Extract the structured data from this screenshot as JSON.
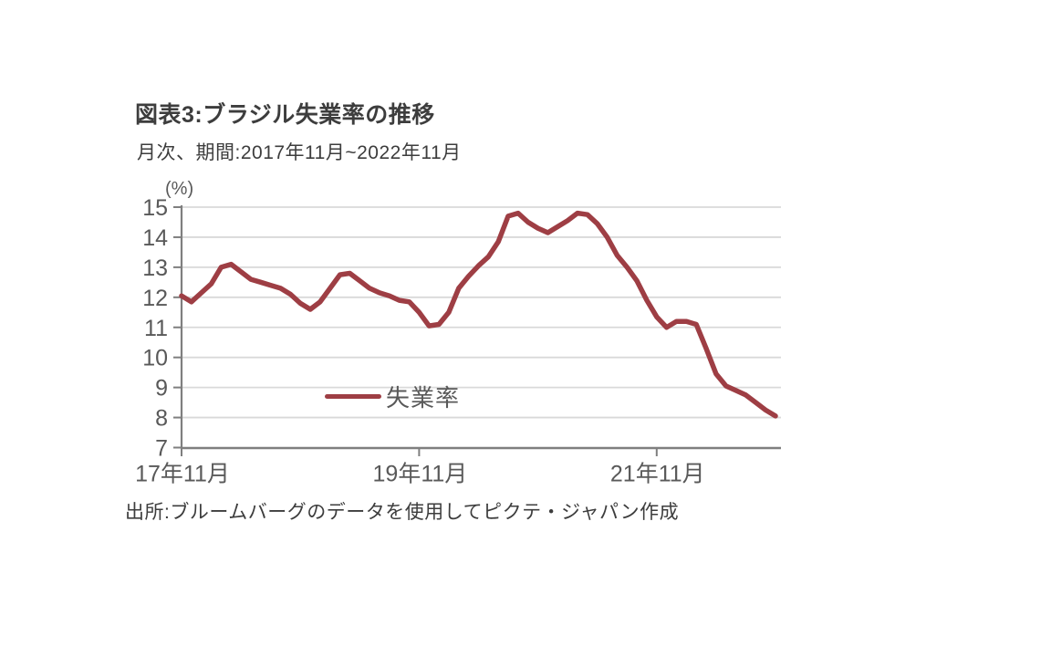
{
  "header": {
    "title": "図表3:ブラジル失業率の推移",
    "subtitle": "月次、期間:2017年11月~2022年11月"
  },
  "legend": {
    "label": "失業率"
  },
  "footer": {
    "source": "出所:ブルームバーグのデータを使用してピクテ・ジャパン作成"
  },
  "colors": {
    "line": "#9e3e44",
    "grid": "#d9d9d9",
    "axis": "#7f7f7f",
    "tick_text": "#595959",
    "title_text": "#3d3d3d"
  },
  "chart_data": {
    "type": "line",
    "title": "図表3:ブラジル失業率の推移",
    "subtitle": "月次、期間:2017年11月~2022年11月",
    "unit_label": "(%)",
    "ylabel": "(%)",
    "ylim": [
      7,
      15
    ],
    "yticks": [
      15,
      14,
      13,
      12,
      11,
      10,
      9,
      8,
      7
    ],
    "grid": true,
    "legend_position": "inside-lower-left",
    "frequency": "monthly",
    "start_month": "2017年11月",
    "end_month": "2022年11月",
    "x_tick_labels": [
      "17年11月",
      "19年11月",
      "21年11月"
    ],
    "x_tick_month_index": [
      0,
      24,
      48
    ],
    "series": [
      {
        "name": "失業率",
        "color": "#9e3e44",
        "values": [
          12.05,
          11.85,
          12.15,
          12.45,
          13.0,
          13.1,
          12.85,
          12.6,
          12.5,
          12.4,
          12.3,
          12.1,
          11.8,
          11.6,
          11.85,
          12.3,
          12.75,
          12.8,
          12.55,
          12.3,
          12.15,
          12.05,
          11.9,
          11.85,
          11.5,
          11.05,
          11.1,
          11.5,
          12.3,
          12.7,
          13.05,
          13.35,
          13.85,
          14.7,
          14.8,
          14.5,
          14.3,
          14.15,
          14.35,
          14.55,
          14.8,
          14.75,
          14.45,
          14.0,
          13.4,
          13.0,
          12.55,
          11.9,
          11.35,
          11.0,
          11.2,
          11.2,
          11.1,
          10.3,
          9.45,
          9.05,
          8.9,
          8.75,
          8.5,
          8.25,
          8.05
        ]
      }
    ]
  }
}
